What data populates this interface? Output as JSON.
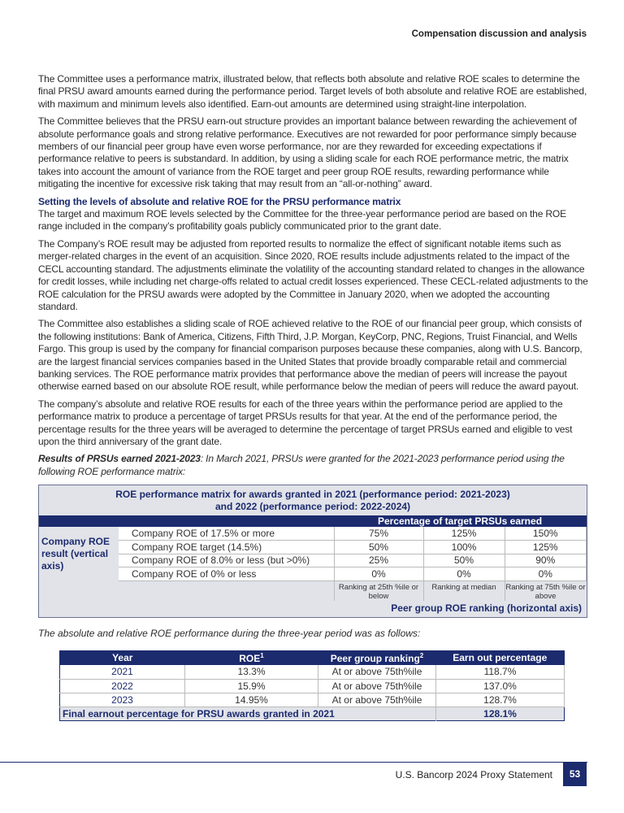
{
  "header": {
    "section": "Compensation discussion and analysis"
  },
  "paragraphs": [
    "The Committee uses a performance matrix, illustrated below, that reflects both absolute and relative ROE scales to determine the final PRSU award amounts earned during the performance period. Target levels of both absolute and relative ROE are established, with maximum and minimum levels also identified. Earn-out amounts are determined using straight-line interpolation.",
    "The Committee believes that the PRSU earn-out structure provides an important balance between rewarding the achievement of absolute performance goals and strong relative performance. Executives are not rewarded for poor performance simply because members of our financial peer group have even worse performance, nor are they rewarded for exceeding expectations if performance relative to peers is substandard. In addition, by using a sliding scale for each ROE performance metric, the matrix takes into account the amount of variance from the ROE target and peer group ROE results, rewarding performance while mitigating the incentive for excessive risk taking that may result from an “all-or-nothing” award.",
    "The target and maximum ROE levels selected by the Committee for the three-year performance period are based on the ROE range included in the company’s profitability goals publicly communicated prior to the grant date.",
    "The Company’s ROE result may be adjusted from reported results to normalize the effect of significant notable items such as merger-related charges in the event of an acquisition. Since 2020, ROE results include adjustments related to the impact of the CECL accounting standard. The adjustments eliminate the volatility of the accounting standard related to changes in the allowance for credit losses, while including net charge-offs related to actual credit losses experienced. These CECL-related adjustments to the ROE calculation for the PRSU awards were adopted by the Committee in January 2020, when we adopted the accounting standard.",
    "The Committee also establishes a sliding scale of ROE achieved relative to the ROE of our financial peer group, which consists of the following institutions: Bank of America, Citizens, Fifth Third, J.P. Morgan, KeyCorp, PNC, Regions, Truist Financial, and Wells Fargo. This group is used by the company for financial comparison purposes because these companies, along with U.S. Bancorp, are the largest financial services companies based in the United States that provide broadly comparable retail and commercial banking services. The ROE performance matrix provides that performance above the median of peers will increase the payout otherwise earned based on our absolute ROE result, while performance below the median of peers will reduce the award payout.",
    "The company’s absolute and relative ROE results for each of the three years within the performance period are applied to the performance matrix to produce a percentage of target PRSUs results for that year. At the end of the performance period, the percentage results for the three years will be averaged to determine the percentage of target PRSUs earned and eligible to vest upon the third anniversary of the grant date."
  ],
  "subheading": "Setting the levels of absolute and relative ROE for the PRSU performance matrix",
  "results_intro": {
    "bold": "Results of PRSUs earned 2021-2023",
    "rest": ": In March 2021, PRSUs were granted for the 2021-2023 performance period using the following ROE performance matrix:"
  },
  "matrix": {
    "title1": "ROE performance matrix for awards granted in 2021 (performance period: 2021-2023)",
    "title2": "and 2022 (performance period: 2022-2024)",
    "band": "Percentage of target PRSUs earned",
    "axis_label": "Company ROE result (vertical axis)",
    "rows": [
      {
        "label": "Company ROE of 17.5% or more",
        "values": [
          "75%",
          "125%",
          "150%"
        ]
      },
      {
        "label": "Company ROE target (14.5%)",
        "values": [
          "50%",
          "100%",
          "125%"
        ]
      },
      {
        "label": "Company ROE of 8.0% or less (but >0%)",
        "values": [
          "25%",
          "50%",
          "90%"
        ]
      },
      {
        "label": "Company ROE of 0% or less",
        "values": [
          "0%",
          "0%",
          "0%"
        ]
      }
    ],
    "rankings": [
      "Ranking at 25th %ile or below",
      "Ranking at median",
      "Ranking at 75th %ile or above"
    ],
    "horizontal_label": "Peer group ROE ranking (horizontal axis)"
  },
  "caption": "The absolute and relative ROE performance during the three-year period was as follows:",
  "results": {
    "headers": [
      "Year",
      "ROE",
      "Peer group ranking",
      "Earn out percentage"
    ],
    "sups": [
      "1",
      "2"
    ],
    "rows": [
      [
        "2021",
        "13.3%",
        "At or above 75th%ile",
        "118.7%"
      ],
      [
        "2022",
        "15.9%",
        "At or above 75th%ile",
        "137.0%"
      ],
      [
        "2023",
        "14.95%",
        "At or above 75th%ile",
        "128.7%"
      ]
    ],
    "final_label": "Final earnout percentage for PRSU awards granted in 2021",
    "final_value": "128.1%"
  },
  "footer": {
    "text": "U.S. Bancorp 2024 Proxy Statement",
    "page": "53"
  },
  "colors": {
    "navy": "#1c2b6e",
    "gray": "#e1e3e9"
  }
}
